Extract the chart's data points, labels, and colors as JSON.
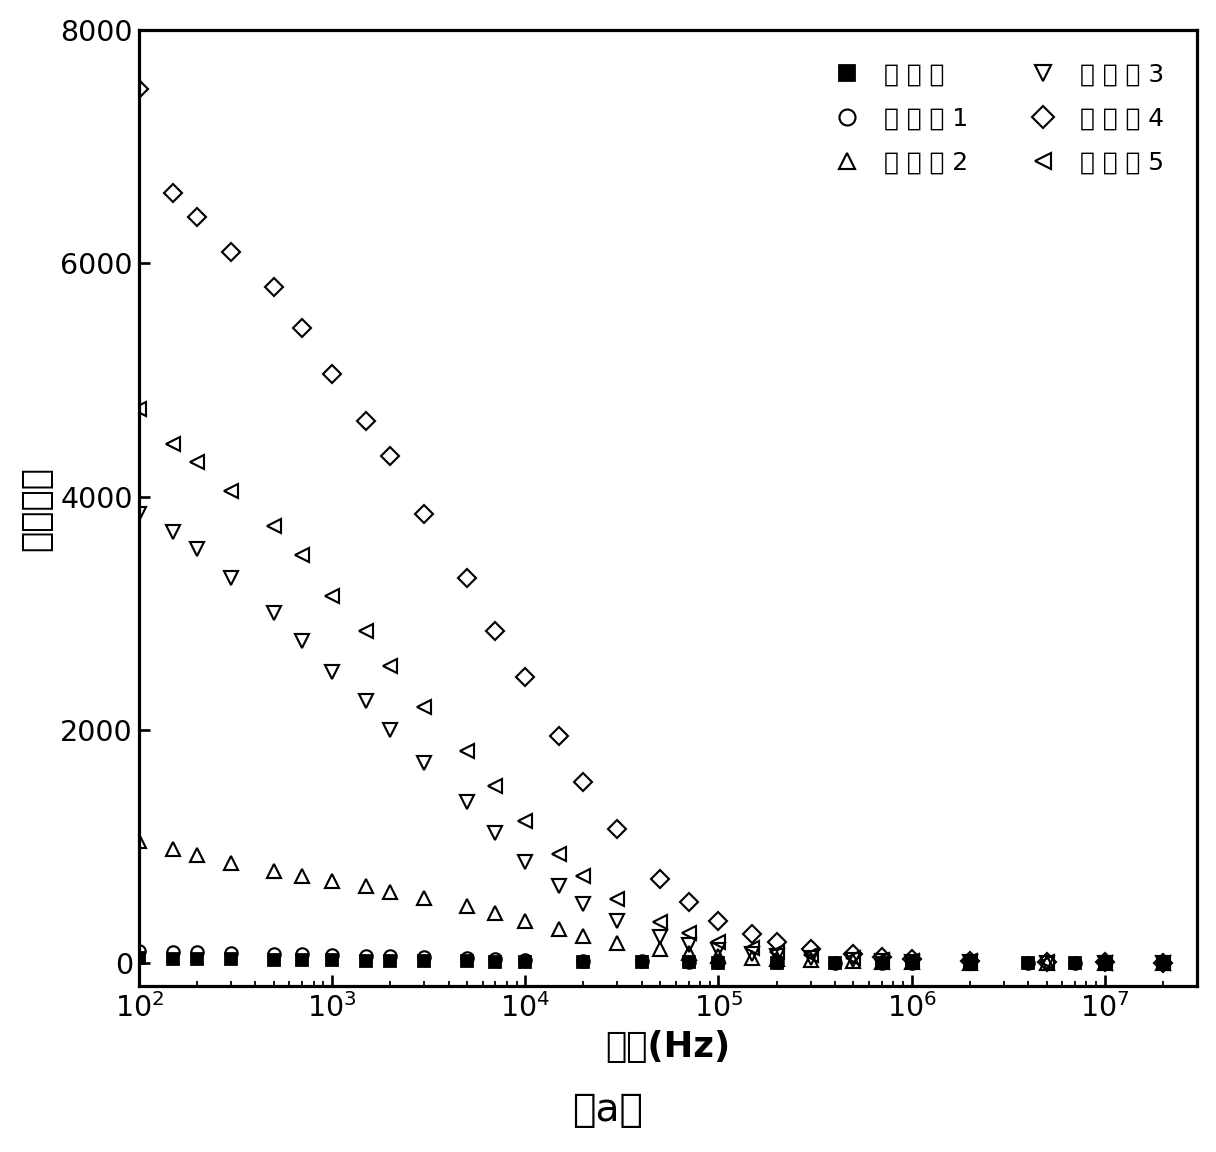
{
  "title": "（a）",
  "xlabel": "频率(Hz)",
  "ylabel": "介电常数",
  "xlim": [
    100,
    30000000
  ],
  "ylim": [
    -200,
    8000
  ],
  "yticks": [
    0,
    2000,
    4000,
    6000,
    8000
  ],
  "legend_entries": [
    "对 比 例",
    "实 施 例 1",
    "实 施 例 2",
    "实 施 例 3",
    "实 施 例 4",
    "实 施 例 5"
  ],
  "series": {
    "compare": {
      "freq": [
        100,
        150,
        200,
        300,
        500,
        700,
        1000,
        1500,
        2000,
        3000,
        5000,
        7000,
        10000,
        20000,
        40000,
        70000,
        100000,
        200000,
        400000,
        700000,
        1000000,
        2000000,
        4000000,
        7000000,
        10000000,
        20000000
      ],
      "val": [
        40,
        38,
        36,
        33,
        30,
        27,
        25,
        22,
        20,
        17,
        15,
        13,
        11,
        9,
        7,
        6,
        5,
        4,
        3,
        3,
        2,
        2,
        2,
        1,
        1,
        1
      ],
      "marker": "s",
      "markersize": 7,
      "filled": true
    },
    "ex1": {
      "freq": [
        100,
        150,
        200,
        300,
        500,
        700,
        1000,
        1500,
        2000,
        3000,
        5000,
        7000,
        10000,
        20000,
        40000,
        70000,
        100000,
        200000,
        400000,
        700000,
        1000000,
        2000000,
        4000000,
        7000000,
        10000000,
        20000000
      ],
      "val": [
        100,
        95,
        92,
        88,
        82,
        77,
        72,
        65,
        58,
        50,
        42,
        35,
        28,
        20,
        14,
        10,
        8,
        6,
        5,
        4,
        3,
        3,
        2,
        2,
        1,
        1
      ],
      "marker": "o",
      "markersize": 7,
      "filled": false
    },
    "ex2": {
      "freq": [
        100,
        150,
        200,
        300,
        500,
        700,
        1000,
        1500,
        2000,
        3000,
        5000,
        7000,
        10000,
        15000,
        20000,
        30000,
        50000,
        70000,
        100000,
        150000,
        200000,
        300000,
        500000,
        700000,
        1000000,
        2000000,
        5000000,
        10000000,
        20000000
      ],
      "val": [
        1050,
        980,
        930,
        860,
        790,
        750,
        700,
        660,
        610,
        560,
        490,
        430,
        360,
        290,
        230,
        175,
        118,
        88,
        62,
        45,
        33,
        23,
        16,
        11,
        8,
        5,
        3,
        2,
        1
      ],
      "marker": "^",
      "markersize": 8,
      "filled": false
    },
    "ex3": {
      "freq": [
        100,
        150,
        200,
        300,
        500,
        700,
        1000,
        1500,
        2000,
        3000,
        5000,
        7000,
        10000,
        15000,
        20000,
        30000,
        50000,
        70000,
        100000,
        150000,
        200000,
        300000,
        500000,
        700000,
        1000000,
        2000000,
        5000000,
        10000000,
        20000000
      ],
      "val": [
        3850,
        3700,
        3550,
        3300,
        3000,
        2760,
        2500,
        2250,
        2000,
        1720,
        1380,
        1120,
        870,
        660,
        510,
        360,
        220,
        158,
        115,
        80,
        58,
        40,
        26,
        18,
        13,
        8,
        4,
        3,
        2
      ],
      "marker": "v",
      "markersize": 8,
      "filled": false
    },
    "ex4": {
      "freq": [
        100,
        150,
        200,
        300,
        500,
        700,
        1000,
        1500,
        2000,
        3000,
        5000,
        7000,
        10000,
        15000,
        20000,
        30000,
        50000,
        70000,
        100000,
        150000,
        200000,
        300000,
        500000,
        700000,
        1000000,
        2000000,
        5000000,
        10000000,
        20000000
      ],
      "val": [
        7500,
        6600,
        6400,
        6100,
        5800,
        5450,
        5050,
        4650,
        4350,
        3850,
        3300,
        2850,
        2450,
        1950,
        1550,
        1150,
        720,
        520,
        365,
        250,
        182,
        124,
        78,
        54,
        36,
        20,
        10,
        6,
        3
      ],
      "marker": "D",
      "markersize": 7,
      "filled": false
    },
    "ex5": {
      "freq": [
        100,
        150,
        200,
        300,
        500,
        700,
        1000,
        1500,
        2000,
        3000,
        5000,
        7000,
        10000,
        15000,
        20000,
        30000,
        50000,
        70000,
        100000,
        150000,
        200000,
        300000,
        500000,
        700000,
        1000000,
        2000000,
        5000000,
        10000000,
        20000000
      ],
      "val": [
        4750,
        4450,
        4300,
        4050,
        3750,
        3500,
        3150,
        2850,
        2550,
        2200,
        1820,
        1520,
        1220,
        940,
        745,
        548,
        352,
        258,
        185,
        130,
        96,
        67,
        44,
        31,
        22,
        14,
        7,
        4,
        2
      ],
      "marker": "<",
      "markersize": 8,
      "filled": false
    }
  },
  "background_color": "#ffffff",
  "axis_color": "#000000",
  "marker_color": "#000000"
}
